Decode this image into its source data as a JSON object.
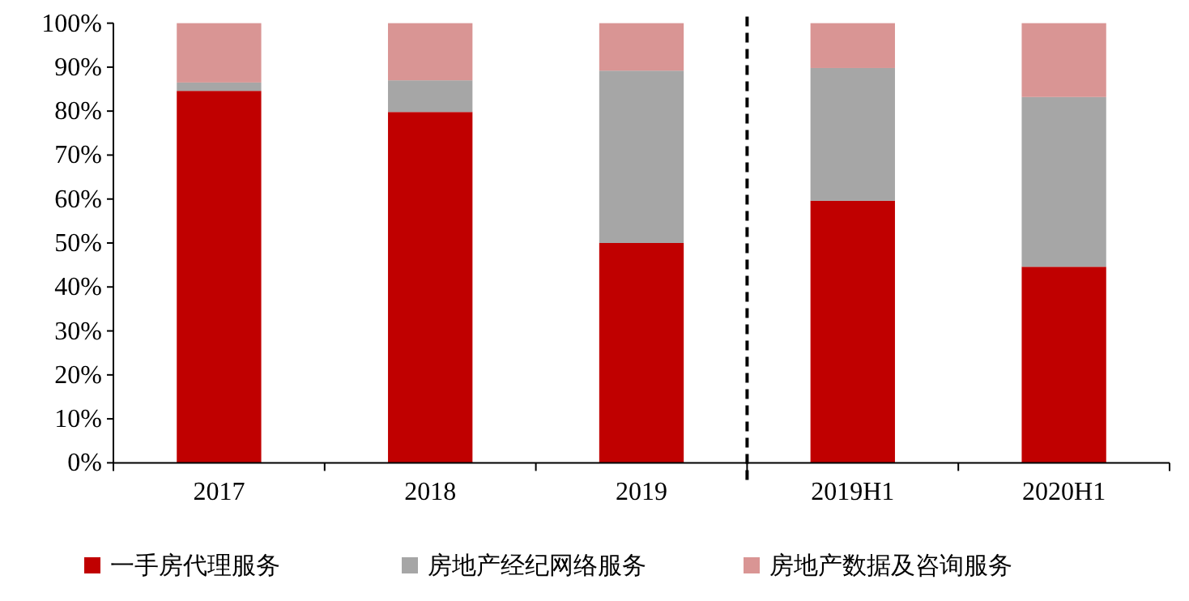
{
  "chart_data": {
    "type": "bar",
    "stacked": true,
    "categories": [
      "2017",
      "2018",
      "2019",
      "2019H1",
      "2020H1"
    ],
    "series": [
      {
        "name": "一手房代理服务",
        "color": "#c00000",
        "values": [
          84.6,
          79.8,
          50.0,
          59.6,
          44.6
        ]
      },
      {
        "name": "房地产经纪网络服务",
        "color": "#a6a6a6",
        "values": [
          1.9,
          7.2,
          39.2,
          30.2,
          38.6
        ]
      },
      {
        "name": "房地产数据及咨询服务",
        "color": "#d99594",
        "values": [
          13.5,
          13.0,
          10.8,
          10.2,
          16.8
        ]
      }
    ],
    "ylim": [
      0,
      100
    ],
    "yticks": [
      {
        "value": 0,
        "label": "0%"
      },
      {
        "value": 10,
        "label": "10%"
      },
      {
        "value": 20,
        "label": "20%"
      },
      {
        "value": 30,
        "label": "30%"
      },
      {
        "value": 40,
        "label": "40%"
      },
      {
        "value": 50,
        "label": "50%"
      },
      {
        "value": 60,
        "label": "60%"
      },
      {
        "value": 70,
        "label": "70%"
      },
      {
        "value": 80,
        "label": "80%"
      },
      {
        "value": 90,
        "label": "90%"
      },
      {
        "value": 100,
        "label": "100%"
      }
    ],
    "legend": "bottom",
    "grid": false
  }
}
